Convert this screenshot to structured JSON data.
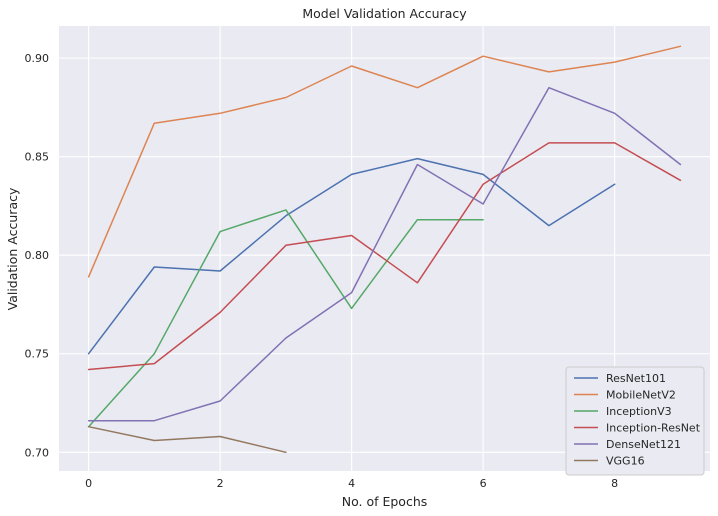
{
  "chart_data": {
    "type": "line",
    "title": "Model Validation Accuracy",
    "xlabel": "No. of Epochs",
    "ylabel": "Validation Accuracy",
    "xlim": [
      -0.45,
      9.45
    ],
    "ylim": [
      0.6905,
      0.9163
    ],
    "xticks": [
      0,
      2,
      4,
      6,
      8
    ],
    "xtick_labels": [
      "0",
      "2",
      "4",
      "6",
      "8"
    ],
    "yticks": [
      0.7,
      0.75,
      0.8,
      0.85,
      0.9
    ],
    "ytick_labels": [
      "0.70",
      "0.75",
      "0.80",
      "0.85",
      "0.90"
    ],
    "grid": true,
    "legend_position": "lower-right",
    "series": [
      {
        "name": "ResNet101",
        "color": "#4c72b0",
        "x": [
          0,
          1,
          2,
          3,
          4,
          5,
          6,
          7,
          8
        ],
        "values": [
          0.75,
          0.794,
          0.792,
          0.82,
          0.841,
          0.849,
          0.841,
          0.815,
          0.836
        ]
      },
      {
        "name": "MobileNetV2",
        "color": "#dd8452",
        "x": [
          0,
          1,
          2,
          3,
          4,
          5,
          6,
          7,
          8,
          9
        ],
        "values": [
          0.789,
          0.867,
          0.872,
          0.88,
          0.896,
          0.885,
          0.901,
          0.893,
          0.898,
          0.906
        ]
      },
      {
        "name": "InceptionV3",
        "color": "#55a868",
        "x": [
          0,
          1,
          2,
          3,
          4,
          5,
          6
        ],
        "values": [
          0.713,
          0.75,
          0.812,
          0.823,
          0.773,
          0.818,
          0.818
        ]
      },
      {
        "name": "Inception-ResNet",
        "color": "#c44e52",
        "x": [
          0,
          1,
          2,
          3,
          4,
          5,
          6,
          7,
          8,
          9
        ],
        "values": [
          0.742,
          0.745,
          0.771,
          0.805,
          0.81,
          0.786,
          0.836,
          0.857,
          0.857,
          0.838
        ]
      },
      {
        "name": "DenseNet121",
        "color": "#8172b3",
        "x": [
          0,
          1,
          2,
          3,
          4,
          5,
          6,
          7,
          8,
          9
        ],
        "values": [
          0.716,
          0.716,
          0.726,
          0.758,
          0.781,
          0.846,
          0.826,
          0.885,
          0.872,
          0.846
        ]
      },
      {
        "name": "VGG16",
        "color": "#937860",
        "x": [
          0,
          1,
          2,
          3
        ],
        "values": [
          0.713,
          0.706,
          0.708,
          0.7
        ]
      }
    ]
  }
}
